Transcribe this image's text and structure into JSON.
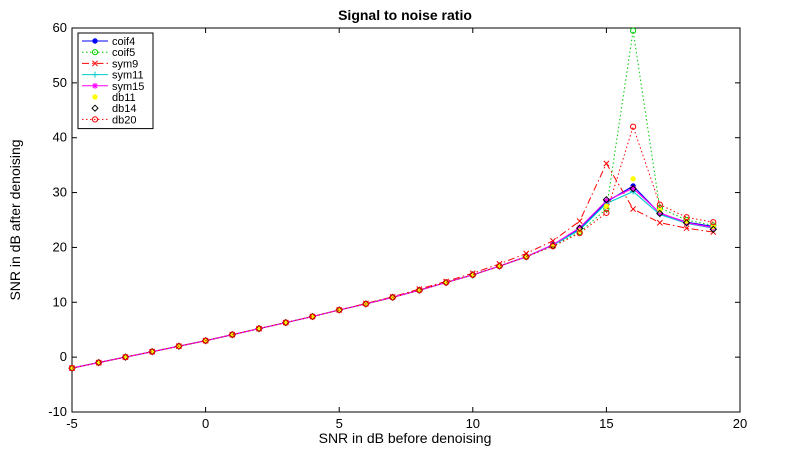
{
  "chart_data": {
    "type": "line",
    "title": "Signal to noise ratio",
    "xlabel": "SNR in dB before denoising",
    "ylabel": "SNR in dB after denoising",
    "xlim": [
      -5,
      20
    ],
    "ylim": [
      -10,
      60
    ],
    "xticks": [
      -5,
      0,
      5,
      10,
      15,
      20
    ],
    "yticks": [
      -10,
      0,
      10,
      20,
      30,
      40,
      50,
      60
    ],
    "grid": false,
    "legend_position": "top-left",
    "x": [
      -5,
      -4,
      -3,
      -2,
      -1,
      0,
      1,
      2,
      3,
      4,
      5,
      6,
      7,
      8,
      9,
      10,
      11,
      12,
      13,
      14,
      15,
      16,
      17,
      18,
      19
    ],
    "series": [
      {
        "name": "coif4",
        "color": "#0000ff",
        "marker": "dot",
        "dash": "solid",
        "values": [
          -2.0,
          -1.0,
          0.0,
          1.0,
          2.0,
          3.0,
          4.1,
          5.2,
          6.3,
          7.4,
          8.6,
          9.7,
          10.9,
          12.2,
          13.6,
          15.0,
          16.6,
          18.3,
          20.5,
          23.4,
          28.3,
          31.2,
          26.2,
          24.6,
          23.8
        ]
      },
      {
        "name": "coif5",
        "color": "#00cc00",
        "marker": "circle",
        "dash": "dotted",
        "values": [
          -2.0,
          -1.0,
          0.0,
          1.0,
          2.0,
          3.0,
          4.1,
          5.2,
          6.3,
          7.4,
          8.6,
          9.7,
          10.9,
          12.2,
          13.6,
          15.0,
          16.6,
          18.3,
          20.3,
          22.8,
          27.0,
          59.5,
          27.2,
          25.0,
          24.0
        ]
      },
      {
        "name": "sym9",
        "color": "#ff0000",
        "marker": "x",
        "dash": "dashdot",
        "values": [
          -2.0,
          -1.0,
          0.0,
          1.0,
          2.0,
          3.0,
          4.1,
          5.2,
          6.3,
          7.4,
          8.6,
          9.8,
          11.0,
          12.4,
          13.8,
          15.3,
          17.0,
          18.9,
          21.2,
          24.8,
          35.3,
          27.0,
          24.5,
          23.5,
          22.8
        ]
      },
      {
        "name": "sym11",
        "color": "#00cccc",
        "marker": "plus",
        "dash": "solid",
        "values": [
          -2.0,
          -1.0,
          0.0,
          1.0,
          2.0,
          3.0,
          4.1,
          5.2,
          6.3,
          7.4,
          8.6,
          9.7,
          10.9,
          12.2,
          13.6,
          15.0,
          16.6,
          18.3,
          20.4,
          23.2,
          28.0,
          30.2,
          26.0,
          24.4,
          23.5
        ]
      },
      {
        "name": "sym15",
        "color": "#ff00ff",
        "marker": "star",
        "dash": "solid",
        "values": [
          -2.0,
          -1.0,
          0.0,
          1.0,
          2.0,
          3.0,
          4.1,
          5.2,
          6.3,
          7.4,
          8.6,
          9.7,
          10.9,
          12.2,
          13.6,
          15.0,
          16.6,
          18.3,
          20.5,
          23.6,
          28.5,
          30.8,
          26.3,
          24.5,
          23.6
        ]
      },
      {
        "name": "db11",
        "color": "#ffff00",
        "marker": "dot",
        "dash": "none",
        "values": [
          -2.0,
          -1.0,
          0.0,
          1.0,
          2.0,
          3.0,
          4.1,
          5.2,
          6.3,
          7.4,
          8.6,
          9.7,
          10.9,
          12.2,
          13.6,
          15.0,
          16.6,
          18.3,
          20.3,
          23.0,
          27.5,
          32.5,
          26.8,
          24.8,
          23.8
        ]
      },
      {
        "name": "db14",
        "color": "#000000",
        "marker": "diamond",
        "dash": "none",
        "values": [
          -2.0,
          -1.0,
          0.0,
          1.0,
          2.0,
          3.0,
          4.1,
          5.2,
          6.3,
          7.4,
          8.6,
          9.7,
          10.9,
          12.2,
          13.6,
          15.0,
          16.6,
          18.3,
          20.3,
          23.5,
          28.7,
          30.7,
          26.2,
          24.5,
          23.3
        ]
      },
      {
        "name": "db20",
        "color": "#ff0000",
        "marker": "circle",
        "dash": "dotted",
        "values": [
          -2.0,
          -1.0,
          0.0,
          1.0,
          2.0,
          3.0,
          4.1,
          5.2,
          6.3,
          7.4,
          8.6,
          9.7,
          10.9,
          12.2,
          13.6,
          15.0,
          16.6,
          18.3,
          20.2,
          22.6,
          26.3,
          42.0,
          27.8,
          25.5,
          24.6
        ]
      }
    ]
  }
}
